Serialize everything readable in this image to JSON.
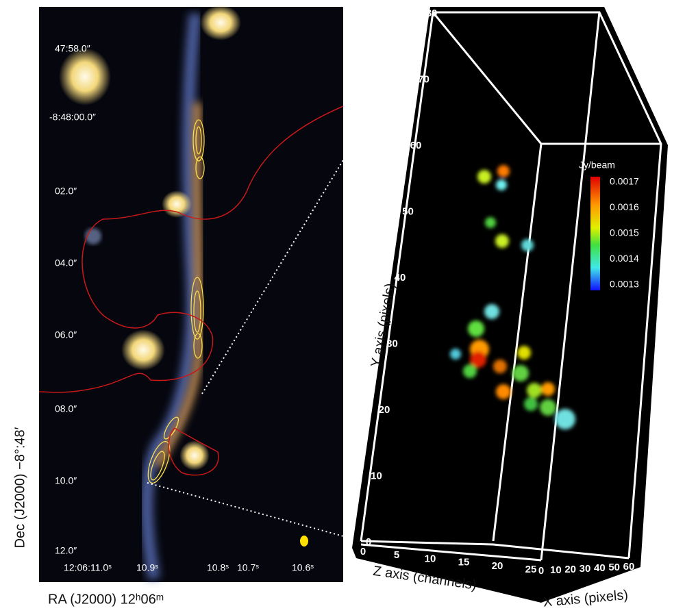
{
  "left_panel": {
    "dec_ticks": [
      "47:58.0″",
      "-8:48:00.0″",
      "02.0″",
      "04.0″",
      "06.0″",
      "08.0″",
      "10.0″",
      "12.0″"
    ],
    "ra_ticks": [
      "12:06:11.0ˢ",
      "10.9ˢ",
      "10.8ˢ",
      "10.7ˢ",
      "10.6ˢ"
    ],
    "y_label": "Dec (J2000) −8°:48′",
    "x_label": "RA (J2000) 12ʰ06ᵐ"
  },
  "right_panel": {
    "y_ticks": [
      "0",
      "10",
      "20",
      "30",
      "40",
      "50",
      "60",
      "70",
      "80"
    ],
    "z_ticks": [
      "0",
      "5",
      "10",
      "15",
      "20",
      "25"
    ],
    "x_ticks": [
      "0",
      "10",
      "20",
      "30",
      "40",
      "50",
      "60"
    ],
    "y_label": "Y axis (pixels)",
    "z_label": "Z axis (channels)",
    "x_label": "X axis (pixels)",
    "colorbar_title": "Jy/beam",
    "colorbar_ticks": [
      "0.0017",
      "0.0016",
      "0.0015",
      "0.0014",
      "0.0013"
    ]
  }
}
